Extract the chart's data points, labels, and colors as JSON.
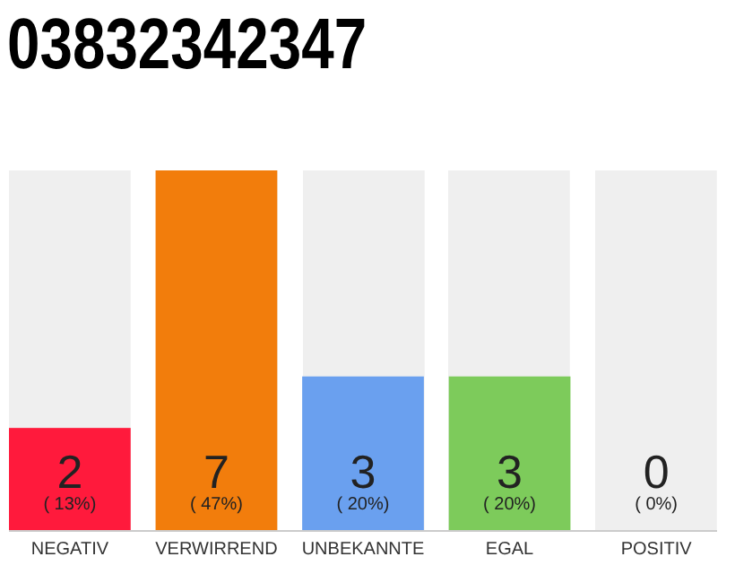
{
  "chart_data": {
    "type": "bar",
    "title": "03832342347",
    "categories": [
      "NEGATIV",
      "VERWIRREND",
      "UNBEKANNTE",
      "EGAL",
      "POSITIV"
    ],
    "values": [
      2,
      7,
      3,
      3,
      0
    ],
    "colors": [
      "#ff1a3c",
      "#f27d0c",
      "#6aa0ef",
      "#7dcb5b",
      "#cccccc"
    ],
    "ylim": [
      0,
      7
    ],
    "tick_labels": "x",
    "data_labels": true,
    "annotations": [
      "( 13%)",
      "( 47%)",
      "( 20%)",
      "( 20%)",
      "( 0%)"
    ]
  }
}
